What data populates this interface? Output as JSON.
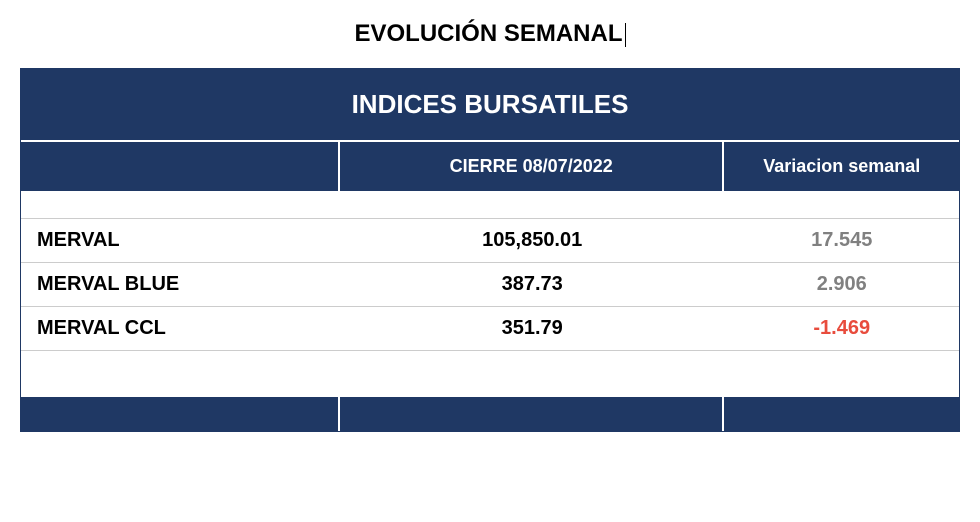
{
  "page_title": "EVOLUCIÓN SEMANAL",
  "table": {
    "main_header": "INDICES BURSATILES",
    "columns": {
      "name": "",
      "close": "CIERRE 08/07/2022",
      "variation": "Variacion semanal"
    },
    "rows": [
      {
        "name": "MERVAL",
        "close": "105,850.01",
        "variation": "17.545",
        "variation_type": "positive"
      },
      {
        "name": "MERVAL BLUE",
        "close": "387.73",
        "variation": "2.906",
        "variation_type": "positive"
      },
      {
        "name": "MERVAL CCL",
        "close": "351.79",
        "variation": "-1.469",
        "variation_type": "negative"
      }
    ],
    "colors": {
      "header_bg": "#1f3864",
      "header_text": "#ffffff",
      "positive": "#808080",
      "negative": "#e84c3d",
      "border": "#cccccc"
    }
  }
}
